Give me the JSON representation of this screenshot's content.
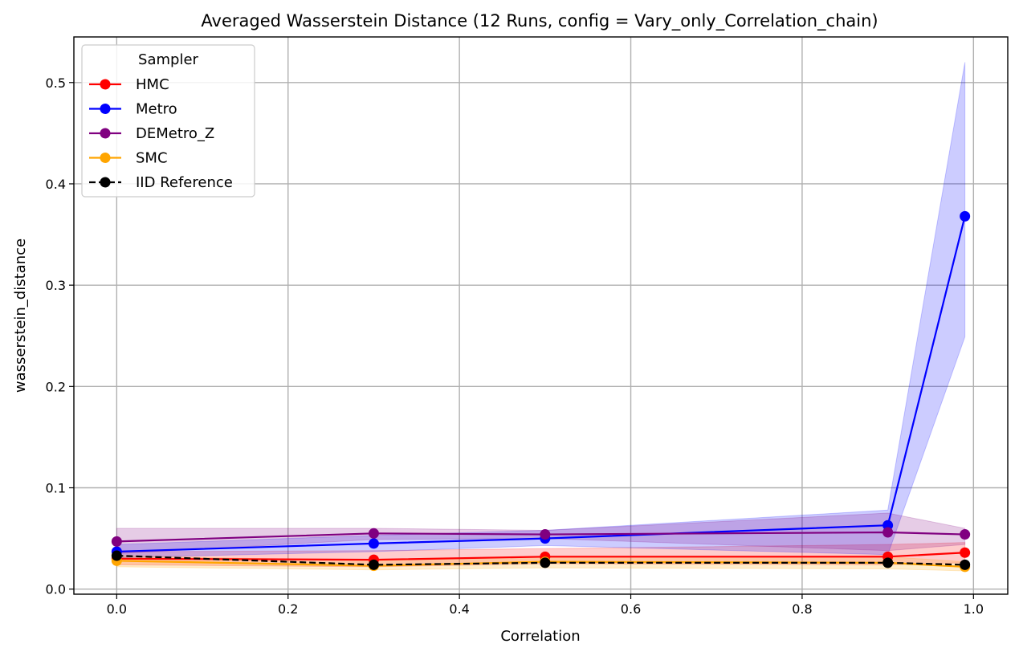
{
  "chart_data": {
    "type": "line",
    "title": "Averaged Wasserstein Distance (12 Runs, config = Vary_only_Correlation_chain)",
    "xlabel": "Correlation",
    "ylabel": "wasserstein_distance",
    "xlim": [
      -0.05,
      1.04
    ],
    "ylim": [
      -0.005,
      0.545
    ],
    "x_ticks": [
      0.0,
      0.2,
      0.4,
      0.6,
      0.8,
      1.0
    ],
    "x_tick_labels": [
      "0.0",
      "0.2",
      "0.4",
      "0.6",
      "0.8",
      "1.0"
    ],
    "y_ticks": [
      0.0,
      0.1,
      0.2,
      0.3,
      0.4,
      0.5
    ],
    "y_tick_labels": [
      "0.0",
      "0.1",
      "0.2",
      "0.3",
      "0.4",
      "0.5"
    ],
    "grid": true,
    "legend": {
      "title": "Sampler",
      "position": "upper-left"
    },
    "x": [
      0.0,
      0.3,
      0.5,
      0.9,
      0.99
    ],
    "series": [
      {
        "name": "HMC",
        "color": "#ff0000",
        "style": "solid",
        "values": [
          0.03,
          0.029,
          0.032,
          0.032,
          0.036
        ],
        "band_low": [
          0.024,
          0.022,
          0.025,
          0.024,
          0.026
        ],
        "band_high": [
          0.037,
          0.038,
          0.04,
          0.044,
          0.046
        ]
      },
      {
        "name": "Metro",
        "color": "#0000ff",
        "style": "solid",
        "values": [
          0.037,
          0.045,
          0.05,
          0.063,
          0.368
        ],
        "band_low": [
          0.031,
          0.037,
          0.043,
          0.034,
          0.249
        ],
        "band_high": [
          0.044,
          0.053,
          0.058,
          0.078,
          0.52
        ]
      },
      {
        "name": "DEMetro_Z",
        "color": "#800080",
        "style": "solid",
        "values": [
          0.047,
          0.055,
          0.054,
          0.056,
          0.054
        ],
        "band_low": [
          0.035,
          0.049,
          0.05,
          0.038,
          0.044
        ],
        "band_high": [
          0.06,
          0.06,
          0.058,
          0.075,
          0.06
        ]
      },
      {
        "name": "SMC",
        "color": "#ffa500",
        "style": "solid",
        "values": [
          0.028,
          0.023,
          0.027,
          0.026,
          0.022
        ],
        "band_low": [
          0.022,
          0.019,
          0.021,
          0.02,
          0.018
        ],
        "band_high": [
          0.033,
          0.028,
          0.032,
          0.032,
          0.027
        ]
      },
      {
        "name": "IID Reference",
        "color": "#000000",
        "style": "dashed",
        "values": [
          0.033,
          0.024,
          0.026,
          0.026,
          0.024
        ]
      }
    ]
  }
}
